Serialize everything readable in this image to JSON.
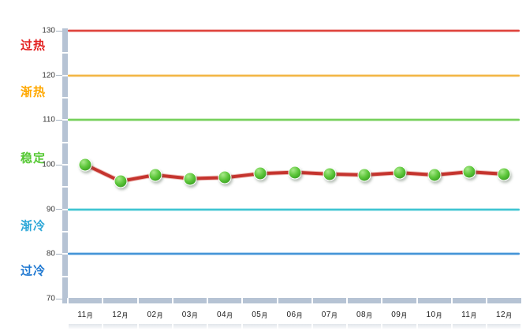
{
  "chart_data": {
    "type": "line",
    "title": "",
    "legend": "none",
    "grid": "horizontal threshold lines only, thick segmented axis bars",
    "x_categories": [
      "11月",
      "12月",
      "02月",
      "03月",
      "04月",
      "05月",
      "06月",
      "07月",
      "08月",
      "09月",
      "10月",
      "11月",
      "12月"
    ],
    "series": [
      {
        "name": "index-line",
        "values": [
          100.0,
          96.3,
          97.7,
          96.9,
          97.1,
          98.0,
          98.3,
          97.9,
          97.7,
          98.2,
          97.7,
          98.4,
          97.9
        ],
        "line_color": "#c5342e",
        "line_halo_color": "#dd7a74",
        "marker_color": "#46b22a"
      }
    ],
    "ylim": [
      70,
      130
    ],
    "yticks": [
      130,
      120,
      110,
      100,
      90,
      80,
      70
    ],
    "bands": [
      {
        "label": "过热",
        "line_value": 130,
        "label_value": 126.8,
        "line_color": "#dd3a32",
        "label_color": "#e32222"
      },
      {
        "label": "渐热",
        "line_value": 120,
        "label_value": 116.4,
        "line_color": "#f2b33d",
        "label_color": "#ffa800"
      },
      {
        "label": "稳定",
        "line_value": 110,
        "label_value": 101.6,
        "line_color": "#6fce53",
        "label_color": "#57c936"
      },
      {
        "label": "渐冷",
        "line_value": 90,
        "label_value": 86.4,
        "line_color": "#35c2cf",
        "label_color": "#2fa8d8"
      },
      {
        "label": "过冷",
        "line_value": 80,
        "label_value": 76.4,
        "line_color": "#3b8fd6",
        "label_color": "#1f78d1"
      }
    ],
    "axis_color": "#b6c3d4",
    "tick_label_color": "#3a3a3a"
  }
}
